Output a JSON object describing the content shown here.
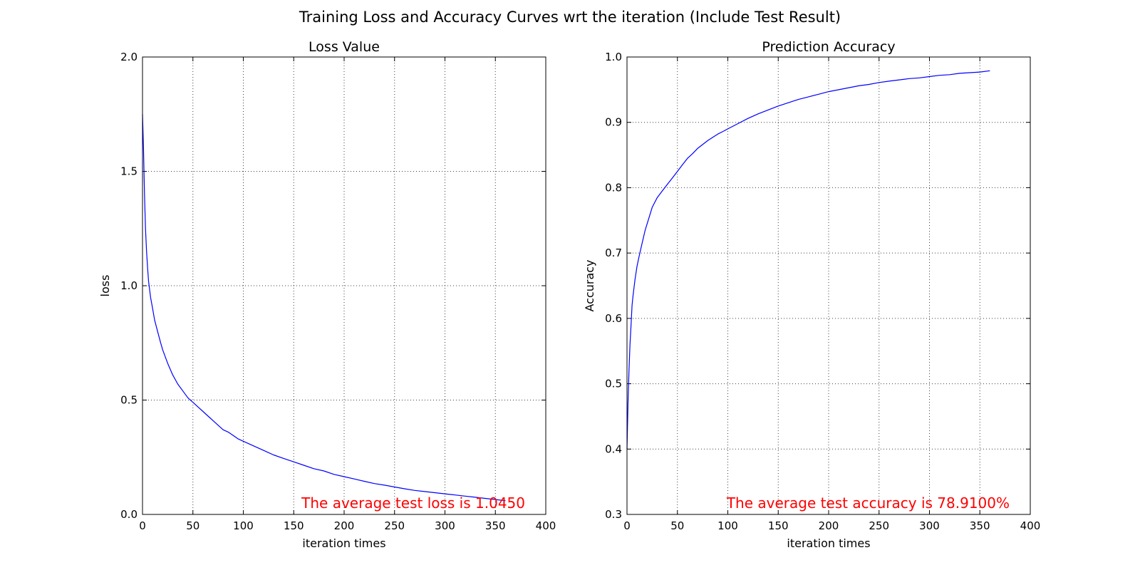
{
  "figure_title": "Training Loss and Accuracy Curves wrt the iteration (Include Test Result)",
  "colors": {
    "line": "#0000ff",
    "annotation": "#ff0000"
  },
  "chart_data": [
    {
      "type": "line",
      "title": "Loss Value",
      "xlabel": "iteration times",
      "ylabel": "loss",
      "xlim": [
        0,
        400
      ],
      "ylim": [
        0.0,
        2.0
      ],
      "xticks": [
        "0",
        "50",
        "100",
        "150",
        "200",
        "250",
        "300",
        "350",
        "400"
      ],
      "yticks": [
        "0.0",
        "0.5",
        "1.0",
        "1.5",
        "2.0"
      ],
      "grid": true,
      "annotation": "The average test loss is 1.0450",
      "series": [
        {
          "x": [
            0,
            1,
            2,
            3,
            4,
            5,
            6,
            8,
            10,
            12,
            15,
            18,
            20,
            25,
            30,
            35,
            40,
            45,
            50,
            55,
            60,
            65,
            70,
            75,
            80,
            85,
            90,
            95,
            100,
            110,
            120,
            130,
            140,
            150,
            160,
            170,
            180,
            190,
            200,
            210,
            220,
            230,
            240,
            250,
            260,
            270,
            280,
            290,
            300,
            310,
            320,
            330,
            340,
            350,
            360
          ],
          "y": [
            1.75,
            1.6,
            1.4,
            1.25,
            1.15,
            1.08,
            1.02,
            0.95,
            0.9,
            0.85,
            0.8,
            0.75,
            0.72,
            0.66,
            0.61,
            0.57,
            0.54,
            0.51,
            0.49,
            0.47,
            0.45,
            0.43,
            0.41,
            0.39,
            0.37,
            0.36,
            0.345,
            0.33,
            0.32,
            0.3,
            0.28,
            0.26,
            0.245,
            0.23,
            0.215,
            0.2,
            0.19,
            0.175,
            0.165,
            0.155,
            0.145,
            0.135,
            0.128,
            0.12,
            0.112,
            0.105,
            0.1,
            0.095,
            0.09,
            0.085,
            0.08,
            0.075,
            0.07,
            0.065,
            0.06
          ]
        }
      ]
    },
    {
      "type": "line",
      "title": "Prediction Accuracy",
      "xlabel": "iteration times",
      "ylabel": "Accuracy",
      "xlim": [
        0,
        400
      ],
      "ylim": [
        0.3,
        1.0
      ],
      "xticks": [
        "0",
        "50",
        "100",
        "150",
        "200",
        "250",
        "300",
        "350",
        "400"
      ],
      "yticks": [
        "0.3",
        "0.4",
        "0.5",
        "0.6",
        "0.7",
        "0.8",
        "0.9",
        "1.0"
      ],
      "grid": true,
      "annotation": "The average test accuracy is 78.9100%",
      "series": [
        {
          "x": [
            0,
            1,
            2,
            3,
            4,
            5,
            6,
            8,
            10,
            12,
            15,
            18,
            20,
            25,
            30,
            35,
            40,
            45,
            50,
            55,
            60,
            65,
            70,
            75,
            80,
            85,
            90,
            95,
            100,
            110,
            120,
            130,
            140,
            150,
            160,
            170,
            180,
            190,
            200,
            210,
            220,
            230,
            240,
            250,
            260,
            270,
            280,
            290,
            300,
            310,
            320,
            330,
            340,
            350,
            360
          ],
          "y": [
            0.4,
            0.47,
            0.52,
            0.56,
            0.59,
            0.62,
            0.635,
            0.66,
            0.68,
            0.695,
            0.715,
            0.735,
            0.745,
            0.77,
            0.785,
            0.795,
            0.805,
            0.815,
            0.825,
            0.835,
            0.845,
            0.852,
            0.86,
            0.866,
            0.872,
            0.877,
            0.882,
            0.886,
            0.89,
            0.898,
            0.906,
            0.913,
            0.919,
            0.925,
            0.93,
            0.935,
            0.939,
            0.943,
            0.947,
            0.95,
            0.953,
            0.956,
            0.958,
            0.961,
            0.963,
            0.965,
            0.967,
            0.968,
            0.97,
            0.972,
            0.973,
            0.975,
            0.976,
            0.977,
            0.979
          ]
        }
      ]
    }
  ]
}
